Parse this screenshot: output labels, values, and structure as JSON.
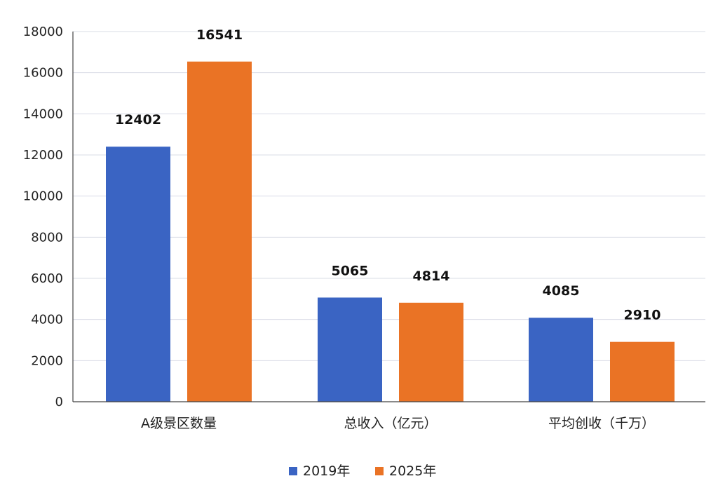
{
  "chart_data": {
    "type": "bar",
    "categories": [
      "A级景区数量",
      "总收入（亿元）",
      "平均创收（千万）"
    ],
    "series": [
      {
        "name": "2019年",
        "values": [
          12402,
          5065,
          4085
        ],
        "color": "#3a64c3"
      },
      {
        "name": "2025年",
        "values": [
          16541,
          4814,
          2910
        ],
        "color": "#ea7325"
      }
    ],
    "ylim": [
      0,
      18000
    ],
    "yticks": [
      0,
      2000,
      4000,
      6000,
      8000,
      10000,
      12000,
      14000,
      16000,
      18000
    ],
    "grid": true,
    "legend_position": "bottom-center",
    "data_labels": true
  }
}
